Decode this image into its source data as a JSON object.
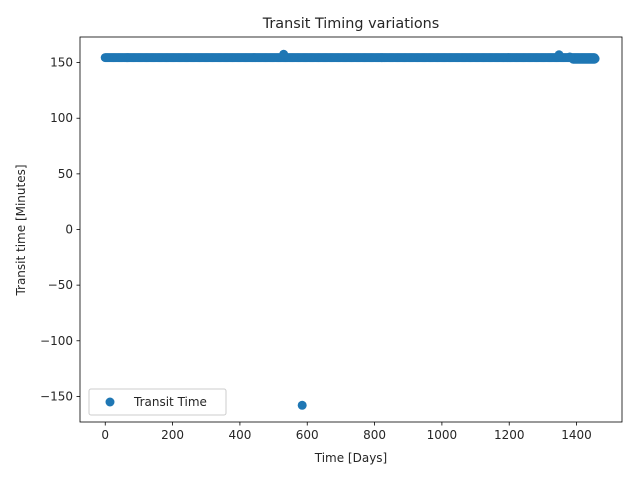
{
  "chart_data": {
    "type": "scatter",
    "title": "Transit Timing variations",
    "xlabel": "Time [Days]",
    "ylabel": "Transit time [Minutes]",
    "xlim": [
      -75,
      1535
    ],
    "ylim": [
      -173,
      173
    ],
    "xticks": [
      0,
      200,
      400,
      600,
      800,
      1000,
      1200,
      1400
    ],
    "yticks": [
      -150,
      -100,
      -50,
      0,
      50,
      100,
      150
    ],
    "xtick_labels": [
      "0",
      "200",
      "400",
      "600",
      "800",
      "1000",
      "1200",
      "1400"
    ],
    "ytick_labels": [
      "−150",
      "−100",
      "−50",
      "0",
      "50",
      "100",
      "150"
    ],
    "grid": false,
    "legend": {
      "position": "lower-left",
      "entries": [
        "Transit Time"
      ]
    },
    "series": [
      {
        "name": "Transit Time",
        "color": "#1f77b4",
        "marker": "circle",
        "dense_band": {
          "x_start": 0,
          "x_end": 1455,
          "x_step": 3.5,
          "y": 154.5
        },
        "tail_band": {
          "x_start": 1390,
          "x_end": 1455,
          "x_step": 3,
          "y": 153
        },
        "points": [
          {
            "x": 530,
            "y": 157.5
          },
          {
            "x": 1348,
            "y": 157
          },
          {
            "x": 1380,
            "y": 155
          },
          {
            "x": 1455,
            "y": 153.5
          },
          {
            "x": 585,
            "y": -158
          }
        ]
      }
    ]
  }
}
